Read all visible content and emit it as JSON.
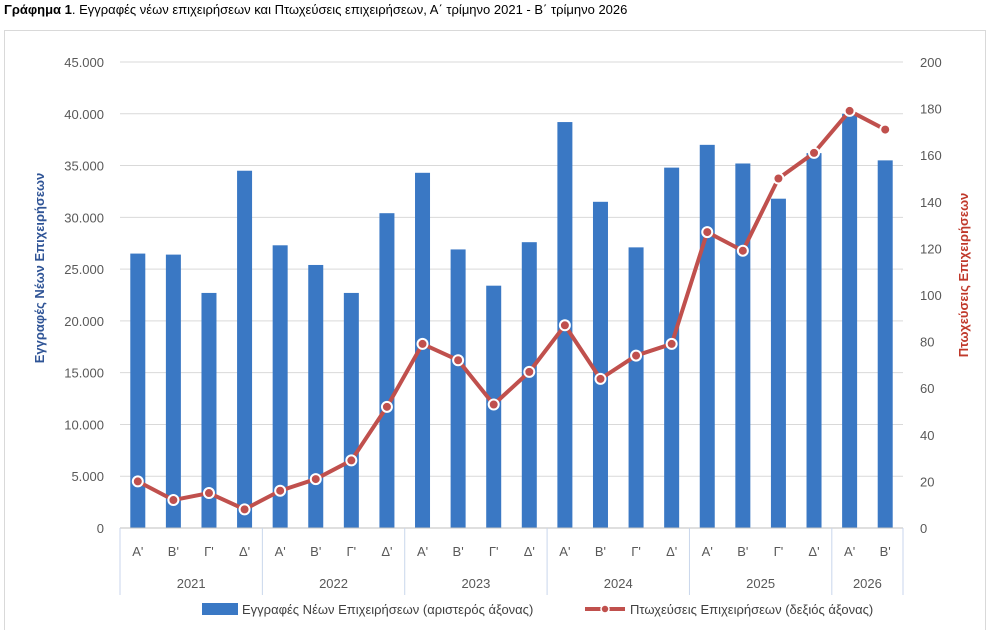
{
  "title": {
    "bold": "Γράφημα 1",
    "rest": ". Εγγραφές νέων επιχειρήσεων και Πτωχεύσεις επιχειρήσεων, Α΄ τρίμηνο 2021 - Β΄ τρίμηνο 2026"
  },
  "chart_data": {
    "type": "bar",
    "quarters": [
      "Α'",
      "Β'",
      "Γ'",
      "Δ'",
      "Α'",
      "Β'",
      "Γ'",
      "Δ'",
      "Α'",
      "Β'",
      "Γ'",
      "Δ'",
      "Α'",
      "Β'",
      "Γ'",
      "Δ'",
      "Α'",
      "Β'",
      "Γ'",
      "Δ'",
      "Α'",
      "Β'"
    ],
    "years": [
      {
        "label": "2021",
        "count": 4
      },
      {
        "label": "2022",
        "count": 4
      },
      {
        "label": "2023",
        "count": 4
      },
      {
        "label": "2024",
        "count": 4
      },
      {
        "label": "2025",
        "count": 4
      },
      {
        "label": "2026",
        "count": 2
      }
    ],
    "series": [
      {
        "name": "Εγγραφές Νέων Επιχειρήσεων (αριστερός άξονας)",
        "type": "bar",
        "axis": "left",
        "color": "#3a78c4",
        "values": [
          26500,
          26400,
          22700,
          34500,
          27300,
          25400,
          22700,
          30400,
          34300,
          26900,
          23400,
          27600,
          39200,
          31500,
          27100,
          34800,
          37000,
          35200,
          31800,
          36200,
          40000,
          35500
        ]
      },
      {
        "name": "Πτωχεύσεις Επιχειρήσεων (δεξιός άξονας)",
        "type": "line",
        "axis": "right",
        "color": "#c0504d",
        "values": [
          20,
          12,
          15,
          8,
          16,
          21,
          29,
          52,
          79,
          72,
          53,
          67,
          87,
          64,
          74,
          79,
          127,
          119,
          150,
          161,
          179,
          171
        ]
      }
    ],
    "ylabel_left": "Εγγραφές Νέων Επιχειρήσεων",
    "ylabel_right": "Πτωχεύσεις Επιχειρήσεων",
    "ylim_left": [
      0,
      45000
    ],
    "ylim_right": [
      0,
      200
    ],
    "yticks_left": [
      "0",
      "5.000",
      "10.000",
      "15.000",
      "20.000",
      "25.000",
      "30.000",
      "35.000",
      "40.000",
      "45.000"
    ],
    "yticks_right": [
      "0",
      "20",
      "40",
      "60",
      "80",
      "100",
      "120",
      "140",
      "160",
      "180",
      "200"
    ],
    "grid": true,
    "legend": "bottom"
  }
}
